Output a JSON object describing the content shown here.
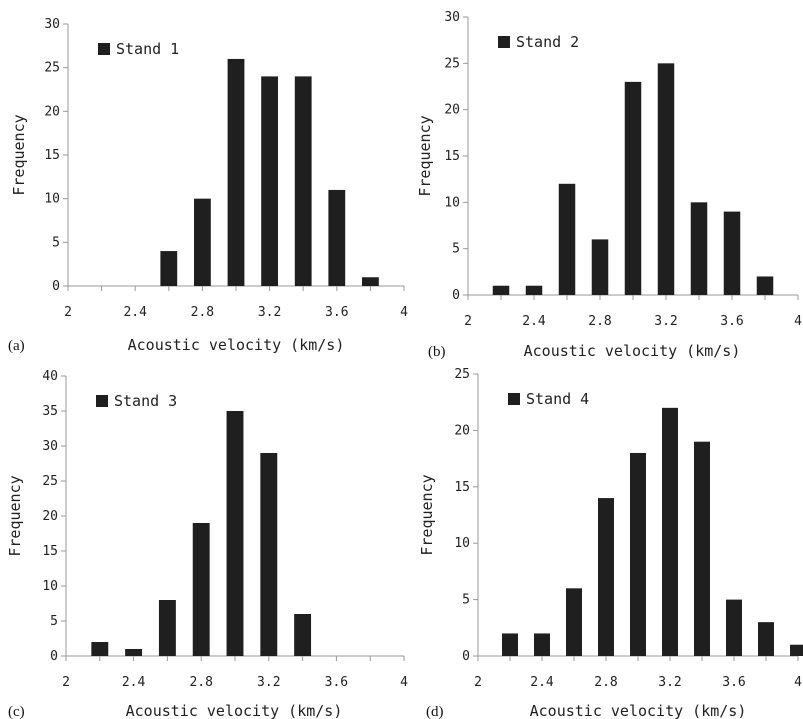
{
  "chart_data": [
    {
      "type": "bar",
      "panel_label": "(a)",
      "legend": "Stand 1",
      "xlabel": "Acoustic velocity (km/s)",
      "ylabel": "Frequency",
      "xlim": [
        2,
        4
      ],
      "ylim": [
        0,
        30
      ],
      "x_ticks": [
        "2",
        "2.4",
        "2.8",
        "3.2",
        "3.6",
        "4"
      ],
      "y_ticks": [
        "0",
        "5",
        "10",
        "15",
        "20",
        "25",
        "30"
      ],
      "x": [
        2.2,
        2.4,
        2.6,
        2.8,
        3.0,
        3.2,
        3.4,
        3.6,
        3.8
      ],
      "values": [
        0,
        0,
        4,
        10,
        26,
        24,
        24,
        11,
        1
      ]
    },
    {
      "type": "bar",
      "panel_label": "(b)",
      "legend": "Stand 2",
      "xlabel": "Acoustic velocity (km/s)",
      "ylabel": "Frequency",
      "xlim": [
        2,
        4
      ],
      "ylim": [
        0,
        30
      ],
      "x_ticks": [
        "2",
        "2.4",
        "2.8",
        "3.2",
        "3.6",
        "4"
      ],
      "y_ticks": [
        "0",
        "5",
        "10",
        "15",
        "20",
        "25",
        "30"
      ],
      "x": [
        2.2,
        2.4,
        2.6,
        2.8,
        3.0,
        3.2,
        3.4,
        3.6,
        3.8
      ],
      "values": [
        1,
        1,
        12,
        6,
        23,
        25,
        10,
        9,
        2
      ]
    },
    {
      "type": "bar",
      "panel_label": "(c)",
      "legend": "Stand 3",
      "xlabel": "Acoustic velocity (km/s)",
      "ylabel": "Frequency",
      "xlim": [
        2,
        4
      ],
      "ylim": [
        0,
        40
      ],
      "x_ticks": [
        "2",
        "2.4",
        "2.8",
        "3.2",
        "3.6",
        "4"
      ],
      "y_ticks": [
        "0",
        "5",
        "10",
        "15",
        "20",
        "25",
        "30",
        "35",
        "40"
      ],
      "x": [
        2.2,
        2.4,
        2.6,
        2.8,
        3.0,
        3.2,
        3.4
      ],
      "values": [
        2,
        1,
        8,
        19,
        35,
        29,
        6
      ]
    },
    {
      "type": "bar",
      "panel_label": "(d)",
      "legend": "Stand 4",
      "xlabel": "Acoustic velocity (km/s)",
      "ylabel": "Frequency",
      "xlim": [
        2,
        4
      ],
      "ylim": [
        0,
        25
      ],
      "x_ticks": [
        "2",
        "2.4",
        "2.8",
        "3.2",
        "3.6",
        "4"
      ],
      "y_ticks": [
        "0",
        "5",
        "10",
        "15",
        "20",
        "25"
      ],
      "x": [
        2.2,
        2.4,
        2.6,
        2.8,
        3.0,
        3.2,
        3.4,
        3.6,
        3.8,
        4.0
      ],
      "values": [
        2,
        2,
        6,
        14,
        18,
        22,
        19,
        5,
        3,
        1
      ]
    }
  ]
}
